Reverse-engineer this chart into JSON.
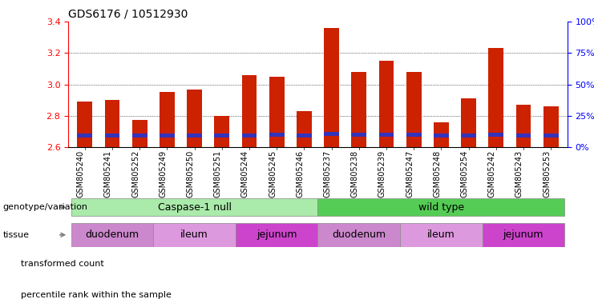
{
  "title": "GDS6176 / 10512930",
  "samples": [
    "GSM805240",
    "GSM805241",
    "GSM805252",
    "GSM805249",
    "GSM805250",
    "GSM805251",
    "GSM805244",
    "GSM805245",
    "GSM805246",
    "GSM805237",
    "GSM805238",
    "GSM805239",
    "GSM805247",
    "GSM805248",
    "GSM805254",
    "GSM805242",
    "GSM805243",
    "GSM805253"
  ],
  "transformed_count": [
    2.89,
    2.9,
    2.775,
    2.95,
    2.97,
    2.8,
    3.06,
    3.05,
    2.83,
    3.36,
    3.08,
    3.15,
    3.08,
    2.76,
    2.91,
    3.23,
    2.87,
    2.86
  ],
  "blue_bottom": [
    2.665,
    2.663,
    2.661,
    2.665,
    2.663,
    2.663,
    2.665,
    2.667,
    2.661,
    2.673,
    2.668,
    2.668,
    2.667,
    2.665,
    2.665,
    2.668,
    2.663,
    2.663
  ],
  "blue_top": [
    2.69,
    2.688,
    2.686,
    2.69,
    2.688,
    2.688,
    2.69,
    2.692,
    2.686,
    2.698,
    2.693,
    2.693,
    2.692,
    2.69,
    2.69,
    2.693,
    2.688,
    2.688
  ],
  "ymin": 2.6,
  "ymax": 3.4,
  "yticks": [
    2.6,
    2.8,
    3.0,
    3.2,
    3.4
  ],
  "y2ticks_pct": [
    0,
    25,
    50,
    75,
    100
  ],
  "y2labels": [
    "0%",
    "25%",
    "50%",
    "75%",
    "100%"
  ],
  "bar_color_red": "#cc2200",
  "bar_color_blue": "#3333bb",
  "genotype_groups": [
    {
      "label": "Caspase-1 null",
      "start": 0,
      "end": 9,
      "color": "#aaeaaa"
    },
    {
      "label": "wild type",
      "start": 9,
      "end": 18,
      "color": "#55cc55"
    }
  ],
  "tissue_groups": [
    {
      "label": "duodenum",
      "start": 0,
      "end": 3,
      "color": "#cc88cc"
    },
    {
      "label": "ileum",
      "start": 3,
      "end": 6,
      "color": "#dd99dd"
    },
    {
      "label": "jejunum",
      "start": 6,
      "end": 9,
      "color": "#cc44cc"
    },
    {
      "label": "duodenum",
      "start": 9,
      "end": 12,
      "color": "#cc88cc"
    },
    {
      "label": "ileum",
      "start": 12,
      "end": 15,
      "color": "#dd99dd"
    },
    {
      "label": "jejunum",
      "start": 15,
      "end": 18,
      "color": "#cc44cc"
    }
  ],
  "legend_labels": [
    "transformed count",
    "percentile rank within the sample"
  ],
  "genotype_label": "genotype/variation",
  "tissue_label": "tissue",
  "bar_width": 0.55,
  "title_fontsize": 10,
  "axis_fontsize": 8,
  "label_fontsize": 8.5,
  "row_label_fontsize": 8,
  "tick_label_fontsize": 7
}
